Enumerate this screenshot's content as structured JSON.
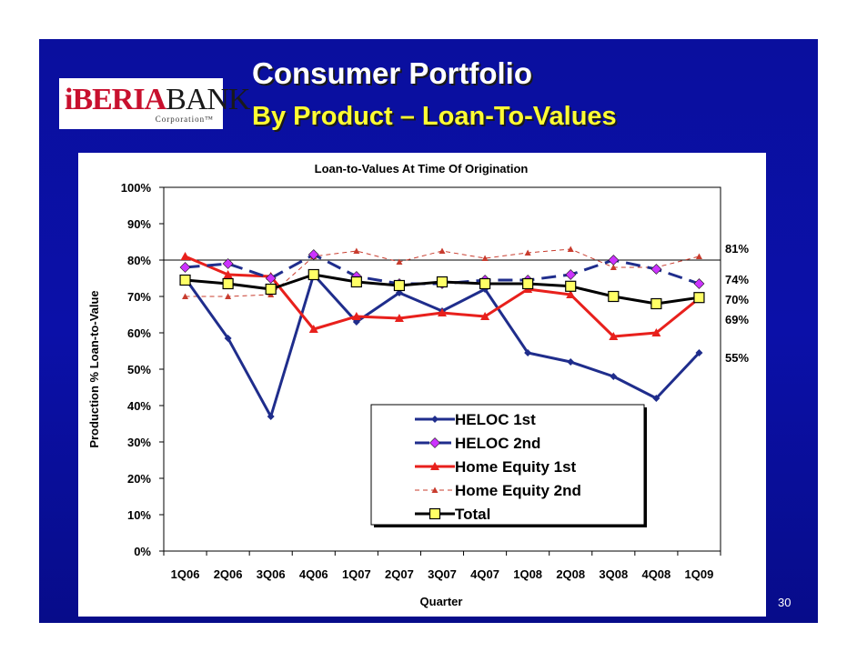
{
  "slide": {
    "title_line1": "Consumer Portfolio",
    "title_line2": "By Product – Loan-To-Values",
    "page_number": "30"
  },
  "logo": {
    "brand_red": "iBERIA",
    "brand_black": "BANK",
    "sub": "Corporation™"
  },
  "colors": {
    "slide_background": "#0b10a8",
    "title_yellow": "#ffff33",
    "heloc_1st": "#1f2d8c",
    "heloc_2nd": "#1f2d8c",
    "home_equity_1st": "#e8201c",
    "home_equity_2nd": "#c83c2e",
    "total": "#000000",
    "marker_magenta": "#cc33ff",
    "marker_yellow": "#ffff66"
  },
  "chart_data": {
    "type": "line",
    "title": "Loan-to-Values At Time Of Origination",
    "xlabel": "Quarter",
    "ylabel": "Production % Loan-to-Value",
    "ylim": [
      0,
      100
    ],
    "yticks": [
      "0%",
      "10%",
      "20%",
      "30%",
      "40%",
      "50%",
      "60%",
      "70%",
      "80%",
      "90%",
      "100%"
    ],
    "gridlines": "horizontal at 80% and 100%",
    "categories": [
      "1Q06",
      "2Q06",
      "3Q06",
      "4Q06",
      "1Q07",
      "2Q07",
      "3Q07",
      "4Q07",
      "1Q08",
      "2Q08",
      "3Q08",
      "4Q08",
      "1Q09"
    ],
    "series": [
      {
        "name": "HELOC 1st",
        "key": "heloc_1st",
        "values": [
          75,
          58.5,
          37,
          76,
          63,
          71,
          66,
          72,
          54.5,
          52,
          48,
          42,
          54.5
        ]
      },
      {
        "name": "HELOC 2nd",
        "key": "heloc_2nd",
        "values": [
          78,
          79,
          75,
          81.5,
          75.5,
          73.5,
          73.5,
          74.5,
          74.5,
          76,
          80,
          77.5,
          73.5
        ]
      },
      {
        "name": "Home Equity 1st",
        "key": "home_equity_1st",
        "values": [
          81,
          76,
          75.5,
          61,
          64.5,
          64,
          65.5,
          64.5,
          72,
          70.5,
          59,
          60,
          69.5
        ]
      },
      {
        "name": "Home Equity 2nd",
        "key": "home_equity_2nd",
        "values": [
          70,
          70,
          70.5,
          81,
          82.5,
          79.5,
          82.5,
          80.5,
          82,
          83,
          78,
          78,
          81
        ]
      },
      {
        "name": "Total",
        "key": "total",
        "values": [
          74.5,
          73.5,
          72,
          76,
          74,
          73,
          74,
          73.5,
          73.5,
          72.8,
          70,
          68,
          69.7
        ]
      }
    ],
    "end_labels": [
      "81%",
      "74%",
      "70%",
      "69%",
      "55%"
    ],
    "legend": "inside lower-right"
  }
}
